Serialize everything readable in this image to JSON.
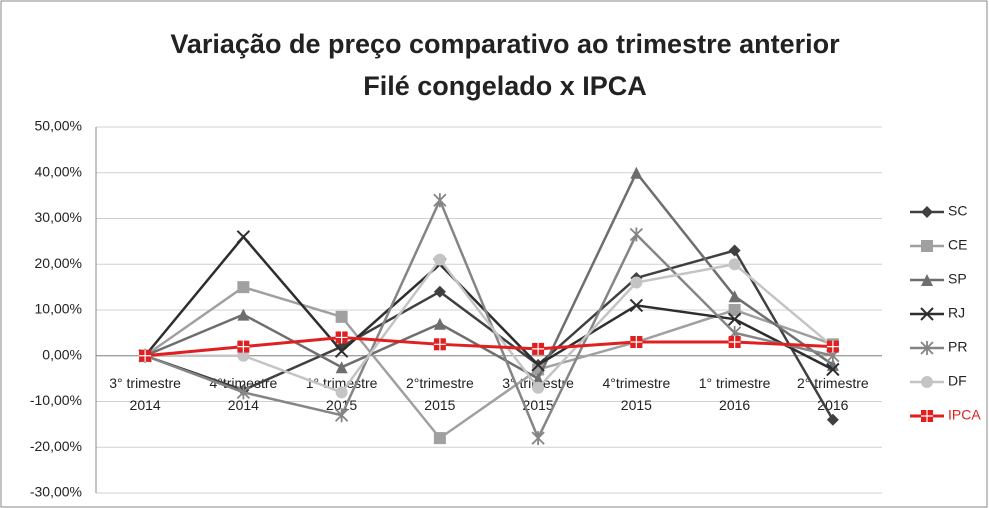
{
  "chart_data": {
    "type": "line",
    "title": [
      "Variação de preço comparativo ao trimestre anterior",
      "Filé congelado x IPCA"
    ],
    "categories": [
      "3° trimestre 2014",
      "4°trimestre 2014",
      "1° trimestre 2015",
      "2°trimestre 2015",
      "3° trimestre 2015",
      "4°trimestre 2015",
      "1° trimestre 2016",
      "2° trimestre 2016"
    ],
    "series": [
      {
        "name": "SC",
        "color": "#404040",
        "marker": "diamond",
        "values": [
          0,
          -7.5,
          2,
          14,
          -2,
          17,
          23,
          -14
        ]
      },
      {
        "name": "CE",
        "color": "#a0a0a0",
        "marker": "square",
        "values": [
          0,
          15,
          8.5,
          -18,
          -3,
          3,
          10,
          2.5
        ]
      },
      {
        "name": "SP",
        "color": "#6e6e6e",
        "marker": "triangle",
        "values": [
          0,
          9,
          -2.5,
          7,
          -5,
          40,
          13,
          -2
        ]
      },
      {
        "name": "RJ",
        "color": "#2e2e2e",
        "marker": "x",
        "values": [
          0,
          26,
          1,
          20,
          -2,
          11,
          8,
          -3
        ]
      },
      {
        "name": "PR",
        "color": "#858585",
        "marker": "star",
        "values": [
          0,
          -8,
          -13,
          34,
          -18,
          26.5,
          5,
          0
        ]
      },
      {
        "name": "DF",
        "color": "#c4c4c4",
        "marker": "circle",
        "values": [
          0,
          0,
          -8,
          21,
          -7,
          16,
          20,
          2
        ]
      },
      {
        "name": "IPCA",
        "color": "#e02020",
        "marker": "plus-square",
        "values": [
          0,
          2,
          4,
          2.5,
          1.5,
          3,
          3,
          2
        ]
      }
    ],
    "ylim": [
      -30,
      50
    ],
    "yticks": [
      {
        "value": -30,
        "label": "-30,00%"
      },
      {
        "value": -20,
        "label": "-20,00%"
      },
      {
        "value": -10,
        "label": "-10,00%"
      },
      {
        "value": 0,
        "label": "0,00%"
      },
      {
        "value": 10,
        "label": "10,00%"
      },
      {
        "value": 20,
        "label": "20,00%"
      },
      {
        "value": 30,
        "label": "30,00%"
      },
      {
        "value": 40,
        "label": "40,00%"
      },
      {
        "value": 50,
        "label": "50,00%"
      }
    ],
    "grid": true,
    "legend": "right"
  }
}
